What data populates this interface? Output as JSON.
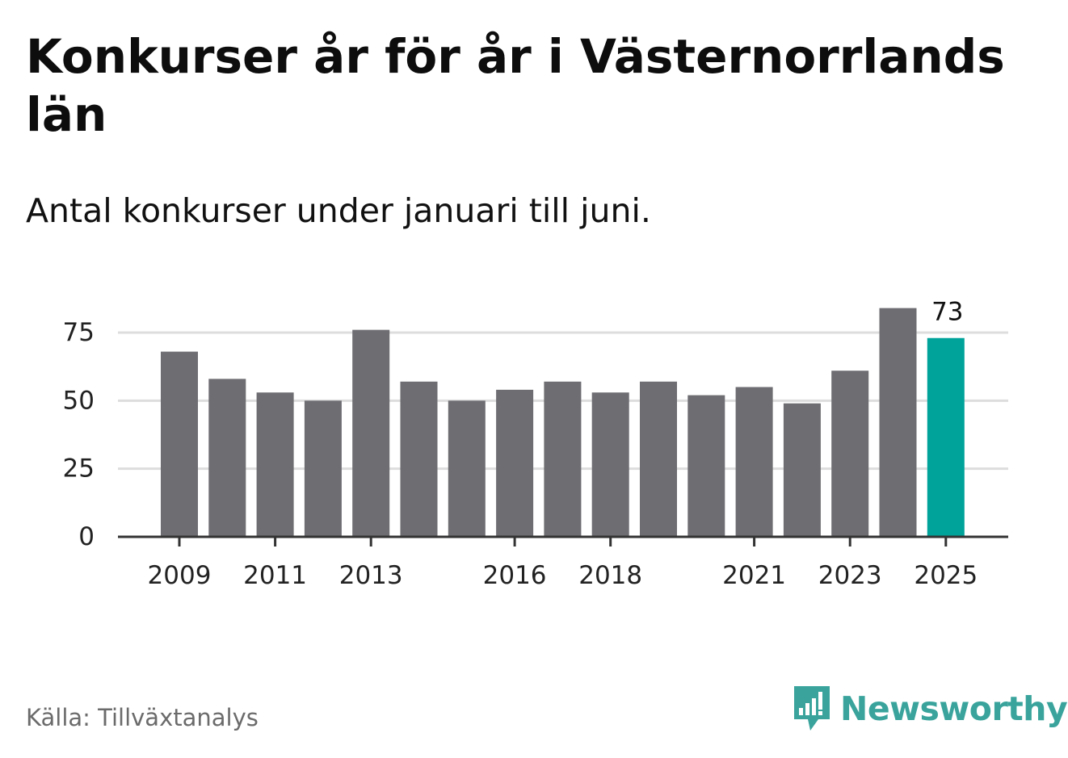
{
  "header": {
    "title": "Konkurser år för år i Västernorrlands län",
    "subtitle": "Antal konkurser under januari till juni."
  },
  "footer": {
    "source": "Källa: Tillväxtanalys",
    "brand": "Newsworthy"
  },
  "colors": {
    "bar": "#6e6d72",
    "highlight": "#00a39a",
    "grid": "#dddddd",
    "axis": "#333333",
    "brand": "#3aa49c"
  },
  "chart_data": {
    "type": "bar",
    "categories": [
      "2009",
      "2010",
      "2011",
      "2012",
      "2013",
      "2014",
      "2015",
      "2016",
      "2017",
      "2018",
      "2019",
      "2020",
      "2021",
      "2022",
      "2023",
      "2024",
      "2025"
    ],
    "values": [
      68,
      58,
      53,
      50,
      76,
      57,
      50,
      54,
      57,
      53,
      57,
      52,
      55,
      49,
      61,
      84,
      73
    ],
    "tick_labels": [
      "2009",
      "2011",
      "2013",
      "2016",
      "2018",
      "2021",
      "2023",
      "2025"
    ],
    "y_ticks": [
      0,
      25,
      50,
      75
    ],
    "ylim": [
      0,
      90
    ],
    "highlight": {
      "category": "2025",
      "label": "73"
    },
    "grid": true,
    "title": "Konkurser år för år i Västernorrlands län",
    "xlabel": "",
    "ylabel": ""
  }
}
